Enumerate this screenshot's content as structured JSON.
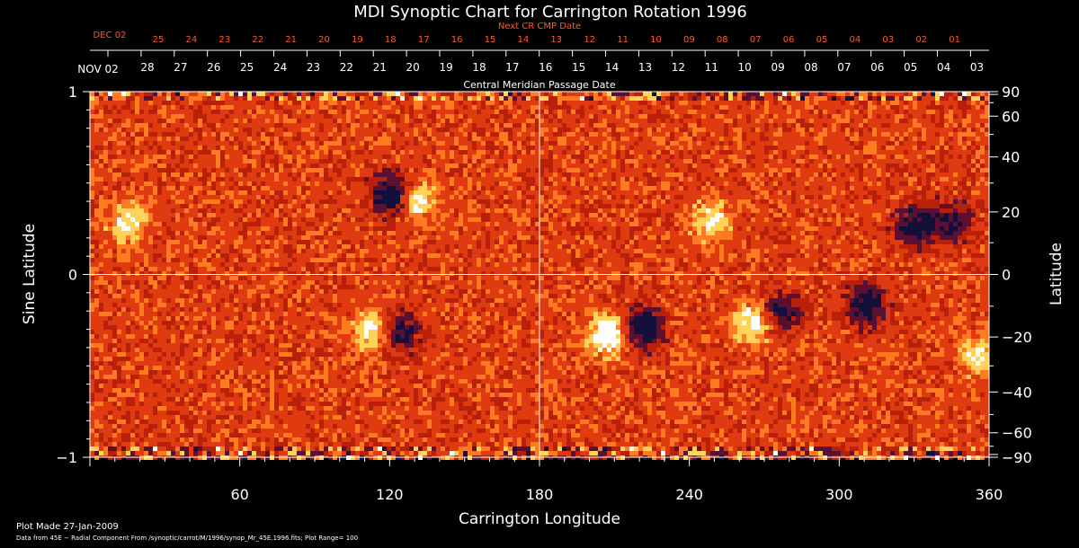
{
  "chart_data": {
    "type": "heatmap",
    "title": "MDI Synoptic Chart for Carrington Rotation 1996",
    "xlabel": "Carrington Longitude",
    "ylabel_left": "Sine Latitude",
    "ylabel_right": "Latitude",
    "xlim": [
      0,
      360
    ],
    "ylim": [
      -1,
      1
    ],
    "x_ticks": [
      60,
      120,
      180,
      240,
      300,
      360
    ],
    "left_y_ticks": [
      {
        "value": 1,
        "label": "1"
      },
      {
        "value": 0,
        "label": "0"
      },
      {
        "value": -1,
        "label": "−1"
      }
    ],
    "right_lat_ticks": [
      {
        "value": 90,
        "label": "90"
      },
      {
        "value": 60,
        "label": "60"
      },
      {
        "value": 40,
        "label": "40"
      },
      {
        "value": 20,
        "label": "20"
      },
      {
        "value": 0,
        "label": "0"
      },
      {
        "value": -20,
        "label": "−20"
      },
      {
        "value": -40,
        "label": "−40"
      },
      {
        "value": -60,
        "label": "−60"
      },
      {
        "value": -90,
        "label": "−90"
      }
    ],
    "cmp_axis_label": "Central Meridian Passage Date",
    "cmp_month_label": "NOV 02",
    "cmp_dates": [
      "28",
      "27",
      "26",
      "25",
      "24",
      "23",
      "22",
      "21",
      "20",
      "19",
      "18",
      "17",
      "16",
      "15",
      "14",
      "13",
      "12",
      "11",
      "10",
      "09",
      "08",
      "07",
      "06",
      "05",
      "04",
      "03"
    ],
    "next_cr_label": "Next CR CMP Date",
    "next_cr_month_label": "DEC 02",
    "next_cr_dates": [
      "25",
      "24",
      "23",
      "22",
      "21",
      "20",
      "19",
      "18",
      "17",
      "16",
      "15",
      "14",
      "13",
      "12",
      "11",
      "10",
      "09",
      "08",
      "07",
      "06",
      "05",
      "04",
      "03",
      "02",
      "01"
    ],
    "regions": [
      {
        "lon": 120,
        "sinlat": 0.45,
        "polarity": "negative",
        "strength": 0.9
      },
      {
        "lon": 130,
        "sinlat": 0.42,
        "polarity": "positive",
        "strength": 0.7
      },
      {
        "lon": 15,
        "sinlat": 0.3,
        "polarity": "positive",
        "strength": 0.6
      },
      {
        "lon": 113,
        "sinlat": -0.3,
        "polarity": "positive",
        "strength": 0.8
      },
      {
        "lon": 122,
        "sinlat": -0.3,
        "polarity": "negative",
        "strength": 0.8
      },
      {
        "lon": 207,
        "sinlat": -0.32,
        "polarity": "positive",
        "strength": 0.9
      },
      {
        "lon": 220,
        "sinlat": -0.28,
        "polarity": "negative",
        "strength": 0.9
      },
      {
        "lon": 265,
        "sinlat": -0.25,
        "polarity": "positive",
        "strength": 0.8
      },
      {
        "lon": 275,
        "sinlat": -0.2,
        "polarity": "negative",
        "strength": 0.7
      },
      {
        "lon": 310,
        "sinlat": -0.16,
        "polarity": "negative",
        "strength": 0.8
      },
      {
        "lon": 248,
        "sinlat": 0.3,
        "polarity": "positive",
        "strength": 0.6
      },
      {
        "lon": 330,
        "sinlat": 0.28,
        "polarity": "negative",
        "strength": 0.8
      },
      {
        "lon": 345,
        "sinlat": 0.3,
        "polarity": "negative",
        "strength": 0.6
      },
      {
        "lon": 355,
        "sinlat": -0.44,
        "polarity": "positive",
        "strength": 0.6
      }
    ],
    "field_range": 100
  },
  "footer": {
    "plot_made": "Plot Made 27-Jan-2009",
    "data_line": "Data from 45E − Radial Component From /synoptic/carrot/M/1996/synop_Mr_45E.1996.fits; Plot Range=  100"
  }
}
